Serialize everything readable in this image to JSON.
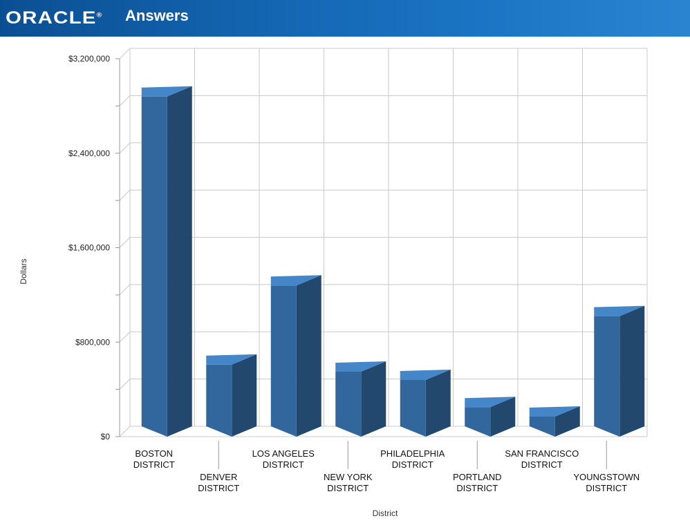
{
  "header": {
    "logo_text": "ORACLE",
    "logo_mark": "®",
    "app_title": "Answers"
  },
  "colors": {
    "header_start": "#0b4f93",
    "header_end": "#2a84d0",
    "bar_front": "#32679d",
    "bar_side": "#23486e",
    "bar_top": "#4586c8",
    "grid": "#c8c8c8"
  },
  "chart_data": {
    "type": "bar",
    "style": "3d",
    "categories": [
      "BOSTON DISTRICT",
      "DENVER DISTRICT",
      "LOS ANGELES DISTRICT",
      "NEW YORK DISTRICT",
      "PHILADELPHIA DISTRICT",
      "PORTLAND DISTRICT",
      "SAN FRANCISCO DISTRICT",
      "YOUNGSTOWN DISTRICT"
    ],
    "category_lines": [
      [
        "BOSTON",
        "DISTRICT"
      ],
      [
        "DENVER",
        "DISTRICT"
      ],
      [
        "LOS ANGELES",
        "DISTRICT"
      ],
      [
        "NEW YORK",
        "DISTRICT"
      ],
      [
        "PHILADELPHIA",
        "DISTRICT"
      ],
      [
        "PORTLAND",
        "DISTRICT"
      ],
      [
        "SAN FRANCISCO",
        "DISTRICT"
      ],
      [
        "YOUNGSTOWN",
        "DISTRICT"
      ]
    ],
    "values": [
      2880000,
      610000,
      1280000,
      550000,
      480000,
      250000,
      170000,
      1020000
    ],
    "xlabel": "District",
    "ylabel": "Dollars",
    "ylim": [
      0,
      3200000
    ],
    "yticks": [
      0,
      800000,
      1600000,
      2400000,
      3200000
    ],
    "ytick_labels": [
      "$0",
      "$800,000",
      "$1,600,000",
      "$2,400,000",
      "$3,200,000"
    ],
    "grid": true,
    "legend": "none"
  }
}
